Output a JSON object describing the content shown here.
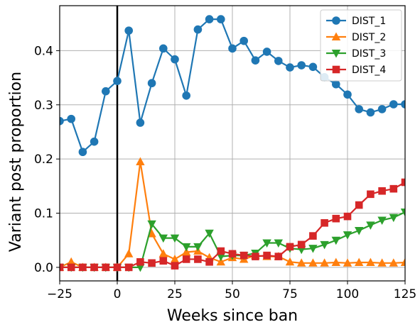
{
  "chart_data": {
    "type": "line",
    "title": "",
    "xlabel": "Weeks since ban",
    "ylabel": "Variant post proportion",
    "xlim": [
      -25,
      125
    ],
    "ylim": [
      -0.025,
      0.483
    ],
    "xticks": [
      -25,
      0,
      25,
      50,
      75,
      100,
      125
    ],
    "xtick_labels": [
      "−25",
      "0",
      "25",
      "50",
      "75",
      "100",
      "125"
    ],
    "yticks": [
      0.0,
      0.1,
      0.2,
      0.3,
      0.4
    ],
    "ytick_labels": [
      "0.0",
      "0.1",
      "0.2",
      "0.3",
      "0.4"
    ],
    "grid": true,
    "legend_position": "top-right",
    "vertical_marker_x": 0,
    "x": [
      -25,
      -20,
      -15,
      -10,
      -5,
      0,
      5,
      10,
      15,
      20,
      25,
      30,
      35,
      40,
      45,
      50,
      55,
      60,
      65,
      70,
      75,
      80,
      85,
      90,
      95,
      100,
      105,
      110,
      115,
      120,
      125
    ],
    "series": [
      {
        "name": "DIST_1",
        "color": "#1f77b4",
        "marker": "circle",
        "values": [
          0.27,
          0.274,
          0.213,
          0.232,
          0.325,
          0.344,
          0.437,
          0.267,
          0.34,
          0.404,
          0.384,
          0.317,
          0.439,
          0.458,
          0.458,
          0.404,
          0.418,
          0.382,
          0.398,
          0.381,
          0.369,
          0.373,
          0.37,
          0.351,
          0.338,
          0.319,
          0.292,
          0.286,
          0.292,
          0.301,
          0.301
        ]
      },
      {
        "name": "DIST_2",
        "color": "#ff7f0e",
        "marker": "triangle-up",
        "values": [
          0.0,
          0.01,
          0.0,
          0.0,
          0.0,
          0.0,
          0.025,
          0.195,
          0.062,
          0.025,
          0.015,
          0.028,
          0.03,
          0.018,
          0.01,
          0.018,
          0.015,
          0.022,
          0.02,
          0.02,
          0.01,
          0.008,
          0.008,
          0.008,
          0.009,
          0.008,
          0.009,
          0.009,
          0.008,
          0.008,
          0.009
        ]
      },
      {
        "name": "DIST_3",
        "color": "#2ca02c",
        "marker": "triangle-down",
        "values": [
          0.0,
          0.0,
          0.0,
          0.0,
          0.0,
          0.0,
          0.0,
          0.0,
          0.08,
          0.054,
          0.054,
          0.038,
          0.038,
          0.063,
          0.02,
          0.022,
          0.022,
          0.026,
          0.045,
          0.045,
          0.035,
          0.033,
          0.035,
          0.042,
          0.05,
          0.06,
          0.068,
          0.078,
          0.087,
          0.092,
          0.102
        ]
      },
      {
        "name": "DIST_4",
        "color": "#d62728",
        "marker": "square",
        "values": [
          0.0,
          0.0,
          0.0,
          0.0,
          0.0,
          0.0,
          0.0,
          0.01,
          0.008,
          0.012,
          0.003,
          0.015,
          0.015,
          0.01,
          0.03,
          0.025,
          0.022,
          0.02,
          0.022,
          0.02,
          0.038,
          0.042,
          0.058,
          0.082,
          0.09,
          0.094,
          0.115,
          0.135,
          0.141,
          0.145,
          0.157
        ]
      }
    ]
  }
}
